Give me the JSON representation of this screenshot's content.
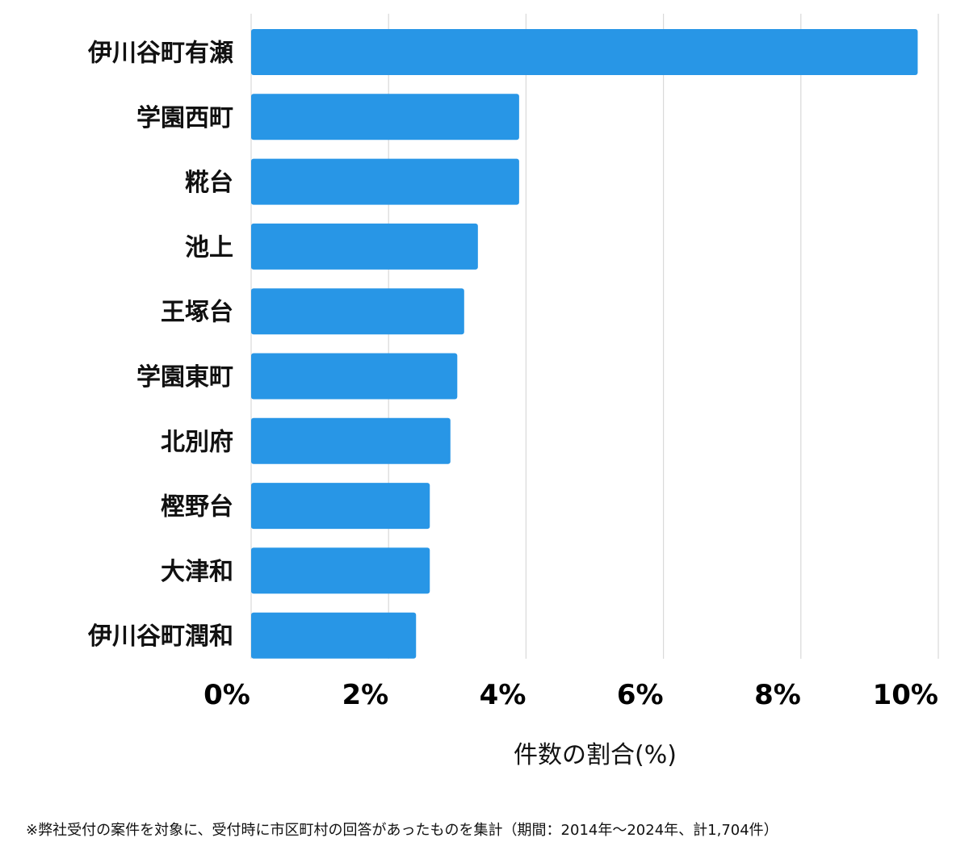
{
  "chart_data": {
    "type": "bar",
    "orientation": "horizontal",
    "categories": [
      "伊川谷町有瀬",
      "学園西町",
      "糀台",
      "池上",
      "王塚台",
      "学園東町",
      "北別府",
      "樫野台",
      "大津和",
      "伊川谷町潤和"
    ],
    "values": [
      9.7,
      3.9,
      3.9,
      3.3,
      3.1,
      3.0,
      2.9,
      2.6,
      2.6,
      2.4
    ],
    "xlabel": "件数の割合(%)",
    "xlim": [
      0,
      10
    ],
    "xticks": [
      0,
      2,
      4,
      6,
      8,
      10
    ],
    "xtick_labels": [
      "0%",
      "2%",
      "4%",
      "6%",
      "8%",
      "10%"
    ],
    "grid": true,
    "bar_color": "#2896e6",
    "grid_color": "#d9d9d9"
  },
  "footnote": "※弊社受付の案件を対象に、受付時に市区町村の回答があったものを集計（期間：2014年～2024年、計1,704件）"
}
